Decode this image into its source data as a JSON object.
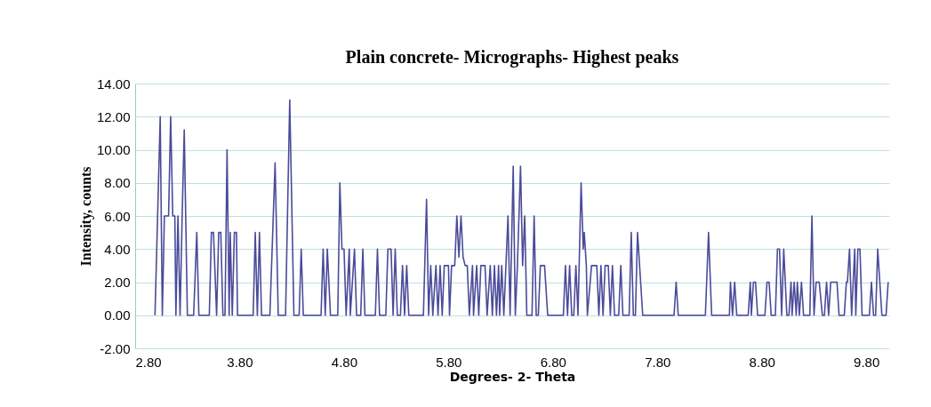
{
  "chart_data": {
    "type": "line",
    "title": "Plain concrete- Micrographs- Highest peaks",
    "xlabel": "Degrees- 2- Theta",
    "ylabel": "Intensity, counts",
    "x": [
      2.99,
      3.04,
      3.06,
      3.08,
      3.12,
      3.14,
      3.16,
      3.18,
      3.19,
      3.21,
      3.23,
      3.25,
      3.27,
      3.3,
      3.36,
      3.39,
      3.41,
      3.51,
      3.53,
      3.55,
      3.58,
      3.6,
      3.62,
      3.64,
      3.66,
      3.68,
      3.7,
      3.71,
      3.73,
      3.75,
      3.77,
      3.78,
      3.93,
      3.95,
      3.97,
      3.99,
      4.01,
      4.09,
      4.14,
      4.17,
      4.24,
      4.28,
      4.32,
      4.37,
      4.39,
      4.41,
      4.58,
      4.6,
      4.62,
      4.64,
      4.67,
      4.74,
      4.76,
      4.78,
      4.8,
      4.82,
      4.85,
      4.86,
      4.9,
      4.92,
      4.96,
      4.98,
      5.0,
      5.1,
      5.12,
      5.14,
      5.2,
      5.22,
      5.25,
      5.27,
      5.29,
      5.31,
      5.34,
      5.36,
      5.38,
      5.4,
      5.42,
      5.56,
      5.59,
      5.61,
      5.63,
      5.65,
      5.68,
      5.7,
      5.72,
      5.74,
      5.76,
      5.8,
      5.81,
      5.83,
      5.86,
      5.88,
      5.9,
      5.92,
      5.94,
      5.96,
      5.98,
      6.0,
      6.03,
      6.04,
      6.07,
      6.09,
      6.11,
      6.15,
      6.17,
      6.2,
      6.22,
      6.24,
      6.26,
      6.28,
      6.29,
      6.31,
      6.33,
      6.35,
      6.37,
      6.39,
      6.42,
      6.44,
      6.46,
      6.49,
      6.51,
      6.53,
      6.55,
      6.6,
      6.62,
      6.64,
      6.66,
      6.68,
      6.72,
      6.75,
      6.9,
      6.92,
      6.94,
      6.96,
      6.98,
      7.0,
      7.02,
      7.04,
      7.07,
      7.09,
      7.1,
      7.12,
      7.13,
      7.17,
      7.22,
      7.24,
      7.26,
      7.28,
      7.3,
      7.33,
      7.35,
      7.37,
      7.39,
      7.43,
      7.45,
      7.47,
      7.53,
      7.55,
      7.57,
      7.59,
      7.61,
      7.66,
      7.96,
      7.98,
      8.0,
      8.26,
      8.29,
      8.32,
      8.49,
      8.5,
      8.52,
      8.54,
      8.56,
      8.67,
      8.69,
      8.7,
      8.72,
      8.74,
      8.76,
      8.83,
      8.85,
      8.87,
      8.89,
      8.93,
      8.95,
      8.97,
      8.99,
      9.01,
      9.04,
      9.06,
      9.08,
      9.09,
      9.11,
      9.13,
      9.14,
      9.16,
      9.18,
      9.2,
      9.26,
      9.28,
      9.3,
      9.32,
      9.35,
      9.38,
      9.4,
      9.42,
      9.44,
      9.46,
      9.52,
      9.54,
      9.59,
      9.61,
      9.62,
      9.64,
      9.66,
      9.69,
      9.7,
      9.72,
      9.74,
      9.76,
      9.83,
      9.85,
      9.87,
      9.89,
      9.91,
      9.93,
      9.95,
      9.99,
      10.01
    ],
    "series": [
      {
        "color": "#4b4b9a",
        "values": [
          0,
          12,
          0,
          6,
          6,
          12,
          6,
          6,
          0,
          6,
          0,
          6,
          11.2,
          0,
          0,
          5,
          0,
          0,
          5,
          5,
          0,
          5,
          5,
          0,
          0,
          10,
          0,
          5,
          0,
          5,
          5,
          0,
          0,
          5,
          0,
          5,
          0,
          0,
          9.2,
          0,
          0,
          13,
          0,
          0,
          4,
          0,
          0,
          4,
          0,
          4,
          0,
          0,
          8,
          4,
          4,
          0,
          4,
          0,
          4,
          0,
          0,
          4,
          0,
          0,
          4,
          0,
          0,
          4,
          4,
          0,
          4,
          0,
          0,
          3,
          0,
          3,
          0,
          0,
          7,
          0,
          3,
          0,
          3,
          0,
          3,
          0,
          3,
          3,
          0,
          3,
          3,
          6,
          3.5,
          6,
          3.5,
          3,
          3,
          0,
          3,
          0,
          3,
          0,
          3,
          3,
          0,
          3,
          0,
          3,
          0,
          3,
          0,
          3,
          0,
          3,
          6,
          0,
          9,
          0,
          3,
          9,
          3,
          6,
          0,
          0,
          6,
          0,
          0,
          3,
          3,
          0,
          0,
          3,
          0,
          3,
          0,
          0,
          3,
          0,
          8,
          4,
          5,
          3,
          0,
          3,
          3,
          0,
          3,
          0,
          3,
          3,
          0,
          3,
          0,
          0,
          3,
          0,
          0,
          5,
          0,
          0,
          5,
          0,
          0,
          2,
          0,
          0,
          5,
          0,
          0,
          2,
          0,
          2,
          0,
          0,
          2,
          0,
          2,
          2,
          0,
          0,
          2,
          2,
          0,
          0,
          4,
          4,
          0,
          4,
          0,
          0,
          2,
          0,
          2,
          0,
          2,
          0,
          2,
          0,
          0,
          6,
          0,
          2,
          2,
          0,
          0,
          2,
          0,
          2,
          2,
          0,
          0,
          2,
          2,
          4,
          0,
          4,
          0,
          4,
          4,
          0,
          0,
          2,
          0,
          0,
          4,
          2,
          0,
          0,
          2
        ]
      }
    ],
    "xlim": [
      2.8,
      10.02
    ],
    "xticks": [
      {
        "value": 2.8,
        "label": "2.80"
      },
      {
        "value": 3.8,
        "label": "3.80"
      },
      {
        "value": 4.8,
        "label": "4.80"
      },
      {
        "value": 5.8,
        "label": "5.80"
      },
      {
        "value": 6.8,
        "label": "6.80"
      },
      {
        "value": 7.8,
        "label": "7.80"
      },
      {
        "value": 8.8,
        "label": "8.80"
      },
      {
        "value": 9.8,
        "label": "9.80"
      }
    ],
    "ylim": [
      -2,
      14
    ],
    "yticks": [
      {
        "value": -2,
        "label": "-2.00"
      },
      {
        "value": 0,
        "label": "0.00"
      },
      {
        "value": 2,
        "label": "2.00"
      },
      {
        "value": 4,
        "label": "4.00"
      },
      {
        "value": 6,
        "label": "6.00"
      },
      {
        "value": 8,
        "label": "8.00"
      },
      {
        "value": 10,
        "label": "10.00"
      },
      {
        "value": 12,
        "label": "12.00"
      },
      {
        "value": 14,
        "label": "14.00"
      }
    ],
    "grid": "y"
  }
}
